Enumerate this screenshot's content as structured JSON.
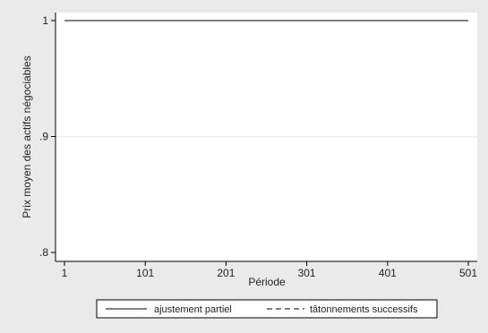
{
  "chart_data": {
    "type": "line",
    "xlabel": "Période",
    "ylabel": "Prix moyen des actifs négociables",
    "xlim": [
      1,
      501
    ],
    "ylim": [
      0.8,
      1.0
    ],
    "x_ticks": [
      1,
      101,
      201,
      301,
      401,
      501
    ],
    "x_tick_labels": [
      "1",
      "101",
      "201",
      "301",
      "401",
      "501"
    ],
    "y_ticks": [
      0.8,
      0.9,
      1.0
    ],
    "y_tick_labels": [
      ".8",
      ".9",
      "1"
    ],
    "grid": "horizontal",
    "legend_position": "bottom",
    "series": [
      {
        "name": "ajustement partiel",
        "style": "solid",
        "color": "#000000",
        "x": [
          1,
          501
        ],
        "y": [
          1.0,
          1.0
        ]
      },
      {
        "name": "tâtonnements successifs",
        "style": "dashed",
        "color": "#000000",
        "x": [
          1,
          501
        ],
        "y": [
          1.0,
          1.0
        ]
      }
    ]
  }
}
